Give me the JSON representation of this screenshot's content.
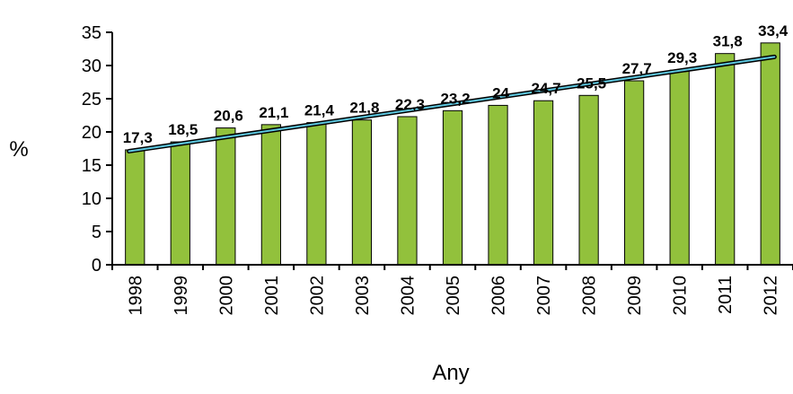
{
  "chart_data": {
    "type": "bar",
    "xlabel": "Any",
    "ylabel": "%",
    "ylim": [
      0,
      35
    ],
    "yticks": [
      0,
      5,
      10,
      15,
      20,
      25,
      30,
      35
    ],
    "categories": [
      "1998",
      "1999",
      "2000",
      "2001",
      "2002",
      "2003",
      "2004",
      "2005",
      "2006",
      "2007",
      "2008",
      "2009",
      "2010",
      "2011",
      "2012"
    ],
    "values": [
      17.3,
      18.5,
      20.6,
      21.1,
      21.4,
      21.8,
      22.3,
      23.2,
      24,
      24.7,
      25.5,
      27.7,
      29.3,
      31.8,
      33.4
    ],
    "data_labels": [
      "17,3",
      "18,5",
      "20,6",
      "21,1",
      "21,4",
      "21,8",
      "22,3",
      "23,2",
      "24",
      "24,7",
      "25,5",
      "27,7",
      "29,3",
      "31,8",
      "33,4"
    ],
    "trendline": {
      "type": "linear",
      "start": 17.1,
      "end": 31.3
    },
    "grid": false,
    "colors": {
      "bar": "#92c13c",
      "bar_edge": "#000000",
      "trend_outer": "#000000",
      "trend_inner": "#5ec8e0"
    }
  }
}
